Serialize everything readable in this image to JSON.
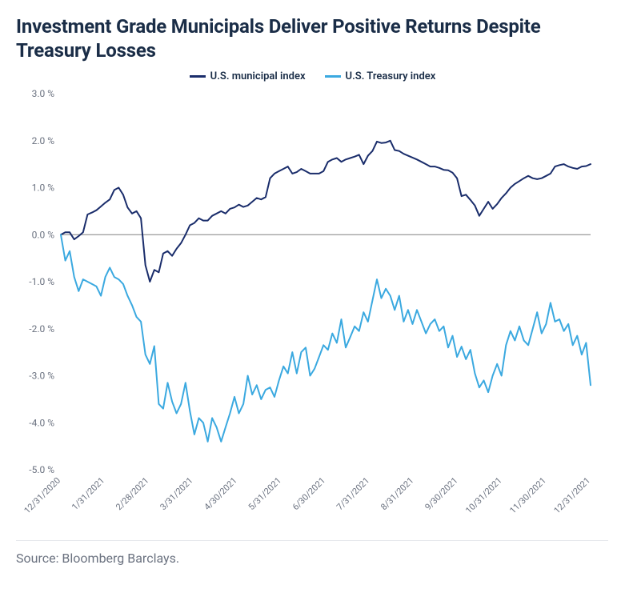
{
  "title": "Investment Grade Municipals Deliver Positive Returns Despite Treasury Losses",
  "source": "Source: Bloomberg Barclays.",
  "chart": {
    "type": "line",
    "background_color": "#ffffff",
    "title_color": "#1a2d47",
    "title_fontsize": 24,
    "label_fontsize": 12,
    "grid_color": "#d1d5db",
    "zero_line_color": "#808080",
    "axis_label_color": "#6b7280",
    "ylim": [
      -5.0,
      3.0
    ],
    "ytick_step": 1.0,
    "y_suffix": " %",
    "x_categories": [
      "12/31/2020",
      "1/31/2021",
      "2/28/2021",
      "3/31/2021",
      "4/30/2021",
      "5/31/2021",
      "6/30/2021",
      "7/31/2021",
      "8/31/2021",
      "9/30/2021",
      "10/31/2021",
      "11/30/2021",
      "12/31/2021"
    ],
    "line_width": 2,
    "legend_position": "top-center",
    "series": [
      {
        "name": "U.S. municipal index",
        "color": "#1a2d6b",
        "data": [
          0.0,
          0.05,
          0.05,
          -0.1,
          -0.03,
          0.05,
          0.43,
          0.47,
          0.52,
          0.6,
          0.68,
          0.75,
          0.95,
          1.0,
          0.85,
          0.58,
          0.45,
          0.5,
          0.35,
          -0.65,
          -1.0,
          -0.75,
          -0.8,
          -0.4,
          -0.35,
          -0.45,
          -0.3,
          -0.18,
          0.0,
          0.2,
          0.25,
          0.35,
          0.3,
          0.3,
          0.4,
          0.45,
          0.5,
          0.45,
          0.55,
          0.58,
          0.64,
          0.59,
          0.62,
          0.7,
          0.78,
          0.75,
          0.8,
          1.2,
          1.3,
          1.35,
          1.4,
          1.45,
          1.3,
          1.33,
          1.4,
          1.35,
          1.3,
          1.3,
          1.3,
          1.35,
          1.55,
          1.6,
          1.63,
          1.55,
          1.6,
          1.63,
          1.66,
          1.7,
          1.5,
          1.68,
          1.78,
          1.98,
          1.95,
          1.96,
          2.0,
          1.8,
          1.78,
          1.72,
          1.68,
          1.64,
          1.6,
          1.55,
          1.5,
          1.45,
          1.45,
          1.42,
          1.38,
          1.37,
          1.32,
          1.2,
          0.82,
          0.85,
          0.74,
          0.62,
          0.4,
          0.55,
          0.7,
          0.55,
          0.65,
          0.78,
          0.88,
          1.0,
          1.08,
          1.14,
          1.2,
          1.25,
          1.2,
          1.18,
          1.2,
          1.25,
          1.3,
          1.45,
          1.48,
          1.5,
          1.45,
          1.42,
          1.4,
          1.45,
          1.46,
          1.5
        ]
      },
      {
        "name": "U.S. Treasury index",
        "color": "#3ba9e0",
        "data": [
          0.0,
          -0.55,
          -0.35,
          -0.9,
          -1.2,
          -0.95,
          -1.0,
          -1.05,
          -1.1,
          -1.3,
          -0.9,
          -0.7,
          -0.9,
          -0.95,
          -1.05,
          -1.3,
          -1.5,
          -1.75,
          -1.85,
          -2.55,
          -2.75,
          -2.37,
          -3.6,
          -3.7,
          -3.15,
          -3.55,
          -3.8,
          -3.6,
          -3.15,
          -3.75,
          -4.25,
          -3.9,
          -4.0,
          -4.4,
          -3.9,
          -4.1,
          -4.4,
          -4.1,
          -3.8,
          -3.45,
          -3.8,
          -3.6,
          -3.0,
          -3.4,
          -3.2,
          -3.5,
          -3.3,
          -3.25,
          -3.45,
          -3.1,
          -2.8,
          -2.95,
          -2.5,
          -2.95,
          -2.5,
          -2.4,
          -3.0,
          -2.85,
          -2.6,
          -2.35,
          -2.45,
          -2.1,
          -2.3,
          -1.8,
          -2.4,
          -2.18,
          -1.95,
          -2.05,
          -1.65,
          -1.85,
          -1.4,
          -0.95,
          -1.35,
          -1.15,
          -1.3,
          -1.6,
          -1.3,
          -1.85,
          -1.6,
          -1.9,
          -1.6,
          -1.85,
          -2.1,
          -1.9,
          -1.8,
          -2.05,
          -1.95,
          -2.4,
          -2.15,
          -2.6,
          -2.38,
          -2.65,
          -2.45,
          -2.95,
          -3.25,
          -3.1,
          -3.35,
          -3.0,
          -2.75,
          -3.0,
          -2.35,
          -2.05,
          -2.25,
          -1.95,
          -2.25,
          -2.35,
          -2.0,
          -1.65,
          -2.1,
          -1.9,
          -1.45,
          -1.85,
          -1.8,
          -2.05,
          -1.9,
          -2.35,
          -2.15,
          -2.55,
          -2.3,
          -3.2
        ]
      }
    ]
  }
}
